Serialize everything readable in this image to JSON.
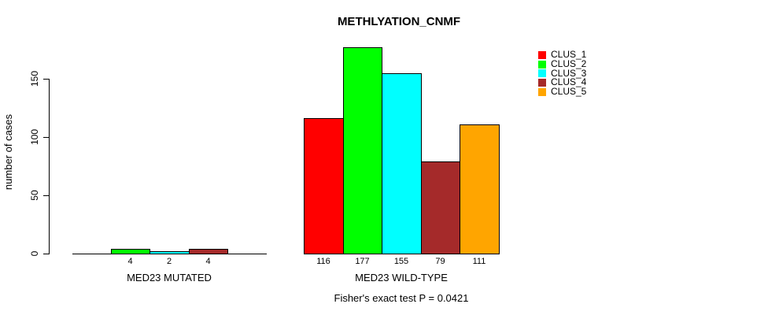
{
  "chart_data": {
    "type": "bar",
    "title": "METHLYATION_CNMF",
    "ylabel": "number of cases",
    "xlabel": "",
    "yticks": [
      0,
      50,
      100,
      150
    ],
    "ylim": [
      0,
      184
    ],
    "grid": false,
    "legend_position": "top-right",
    "categories": [
      "CLUS_1",
      "CLUS_2",
      "CLUS_3",
      "CLUS_4",
      "CLUS_5"
    ],
    "groups": [
      {
        "label": "MED23 MUTATED",
        "values": [
          0,
          4,
          2,
          4,
          0
        ],
        "bar_labels": [
          "",
          "4",
          "2",
          "4",
          ""
        ]
      },
      {
        "label": "MED23 WILD-TYPE",
        "values": [
          116,
          177,
          155,
          79,
          111
        ],
        "bar_labels": [
          "116",
          "177",
          "155",
          "79",
          "111"
        ]
      }
    ],
    "legend": [
      {
        "label": "CLUS_1",
        "color": "#FF0000"
      },
      {
        "label": "CLUS_2",
        "color": "#00FF00"
      },
      {
        "label": "CLUS_3",
        "color": "#00FFFF"
      },
      {
        "label": "CLUS_4",
        "color": "#A52A2A"
      },
      {
        "label": "CLUS_5",
        "color": "#FFA500"
      }
    ],
    "footnote": "Fisher's exact test P = 0.0421"
  }
}
